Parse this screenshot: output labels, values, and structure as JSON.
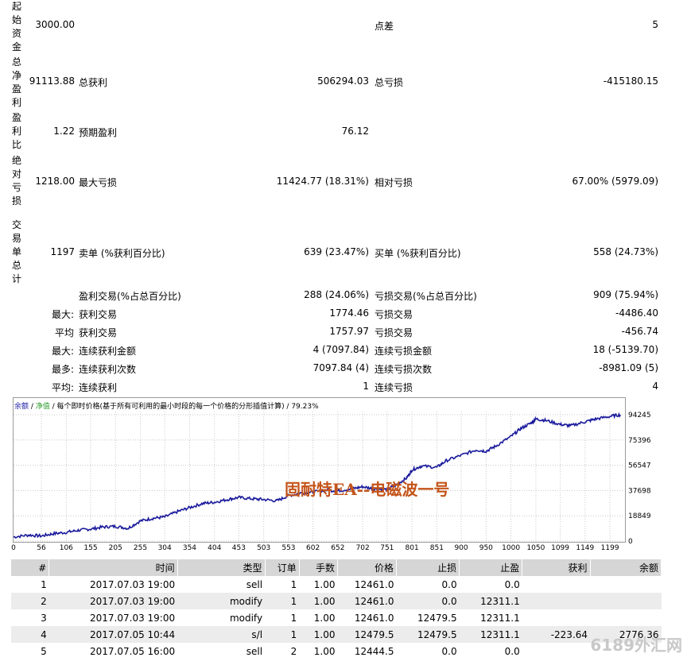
{
  "summary": {
    "initial_deposit_label": "起始资金",
    "initial_deposit": "3000.00",
    "spread_label": "点差",
    "spread": "5",
    "net_profit_label": "总净盈利",
    "net_profit": "91113.88",
    "gross_profit_label": "总获利",
    "gross_profit": "506294.03",
    "gross_loss_label": "总亏损",
    "gross_loss": "-415180.15",
    "profit_factor_label": "盈利比",
    "profit_factor": "1.22",
    "expected_payoff_label": "预期盈利",
    "expected_payoff": "76.12",
    "abs_drawdown_label": "绝对亏损",
    "abs_drawdown": "1218.00",
    "max_drawdown_label": "最大亏损",
    "max_drawdown": "11424.77 (18.31%)",
    "rel_drawdown_label": "相对亏损",
    "rel_drawdown": "67.00% (5979.09)",
    "total_trades_label": "交易单总计",
    "total_trades": "1197",
    "short_label": "卖单 (%获利百分比)",
    "short_value": "639 (23.47%)",
    "long_label": "买单 (%获利百分比)",
    "long_value": "558 (24.73%)",
    "profit_trades_label": "盈利交易(%占总百分比)",
    "profit_trades": "288 (24.06%)",
    "loss_trades_label": "亏损交易(%占总百分比)",
    "loss_trades": "909 (75.94%)",
    "row_max1_prefix": "最大:",
    "largest_profit_label": "获利交易",
    "largest_profit": "1774.46",
    "largest_loss_label": "亏损交易",
    "largest_loss": "-4486.40",
    "row_avg_prefix": "平均",
    "avg_profit_label": "获利交易",
    "avg_profit": "1757.97",
    "avg_loss_label": "亏损交易",
    "avg_loss": "-456.74",
    "row_max2_prefix": "最大:",
    "max_consec_wins_amt_label": "连续获利金额",
    "max_consec_wins_amt": "4 (7097.84)",
    "max_consec_loss_amt_label": "连续亏损金额",
    "max_consec_loss_amt": "18 (-5139.70)",
    "row_most_prefix": "最多:",
    "most_consec_wins_label": "连续获利次数",
    "most_consec_wins": "7097.84 (4)",
    "most_consec_loss_label": "连续亏损次数",
    "most_consec_loss": "-8981.09 (5)",
    "row_avg2_prefix": "平均:",
    "avg_consec_wins_label": "连续获利",
    "avg_consec_wins": "1",
    "avg_consec_loss_label": "连续亏损",
    "avg_consec_loss": "4"
  },
  "chart_legend": {
    "balance": "余额",
    "sep1": " / ",
    "equity": "净值",
    "rest": " / 每个即时价格(基于所有可利用的最小时段的每一个价格的分形插值计算) / 79.23%"
  },
  "watermark": "固耐特EA--电磁波一号",
  "site_mark": "6189外汇网",
  "chart_data": {
    "type": "line",
    "title": "",
    "xlabel": "",
    "ylabel": "",
    "x_ticks": [
      "0",
      "56",
      "106",
      "155",
      "205",
      "255",
      "304",
      "354",
      "404",
      "453",
      "503",
      "553",
      "602",
      "652",
      "702",
      "751",
      "801",
      "851",
      "900",
      "950",
      "1000",
      "1050",
      "1099",
      "1149",
      "1199"
    ],
    "y_ticks": [
      "94245",
      "75396",
      "56547",
      "37698",
      "18849",
      "0"
    ],
    "xlim": [
      0,
      1226
    ],
    "ylim": [
      0,
      94245
    ],
    "series": [
      {
        "color": "#1a1a9c",
        "x": [
          0,
          30,
          56,
          80,
          106,
          130,
          155,
          180,
          205,
          230,
          255,
          280,
          304,
          330,
          354,
          380,
          404,
          430,
          453,
          480,
          503,
          530,
          553,
          580,
          602,
          630,
          652,
          680,
          702,
          725,
          751,
          770,
          790,
          801,
          820,
          851,
          870,
          900,
          930,
          950,
          970,
          1000,
          1020,
          1040,
          1050,
          1070,
          1099,
          1120,
          1149,
          1170,
          1199,
          1220
        ],
        "values": [
          3000,
          4500,
          3800,
          5500,
          6500,
          8000,
          9000,
          10500,
          11000,
          9500,
          15000,
          17000,
          18000,
          22000,
          25000,
          28000,
          29000,
          31000,
          32500,
          31500,
          31000,
          30000,
          34000,
          36000,
          36500,
          38000,
          37500,
          39000,
          40500,
          39000,
          38500,
          42000,
          47000,
          53000,
          56000,
          55000,
          60000,
          64000,
          68000,
          67000,
          71000,
          78000,
          84000,
          88000,
          91000,
          90000,
          87000,
          86000,
          89000,
          91000,
          93000,
          94245
        ]
      }
    ]
  },
  "orders": {
    "headers": [
      "#",
      "时间",
      "类型",
      "订单",
      "手数",
      "价格",
      "止损",
      "止盈",
      "获利",
      "余额"
    ],
    "rows": [
      [
        "1",
        "2017.07.03 19:00",
        "sell",
        "1",
        "1.00",
        "12461.0",
        "0.0",
        "0.0",
        "",
        ""
      ],
      [
        "2",
        "2017.07.03 19:00",
        "modify",
        "1",
        "1.00",
        "12461.0",
        "0.0",
        "12311.1",
        "",
        ""
      ],
      [
        "3",
        "2017.07.03 19:00",
        "modify",
        "1",
        "1.00",
        "12461.0",
        "12479.5",
        "12311.1",
        "",
        ""
      ],
      [
        "4",
        "2017.07.05 10:44",
        "s/l",
        "1",
        "1.00",
        "12479.5",
        "12479.5",
        "12311.1",
        "-223.64",
        "2776.36"
      ],
      [
        "5",
        "2017.07.05 16:00",
        "sell",
        "2",
        "1.00",
        "12444.5",
        "0.0",
        "0.0",
        "",
        ""
      ]
    ]
  }
}
